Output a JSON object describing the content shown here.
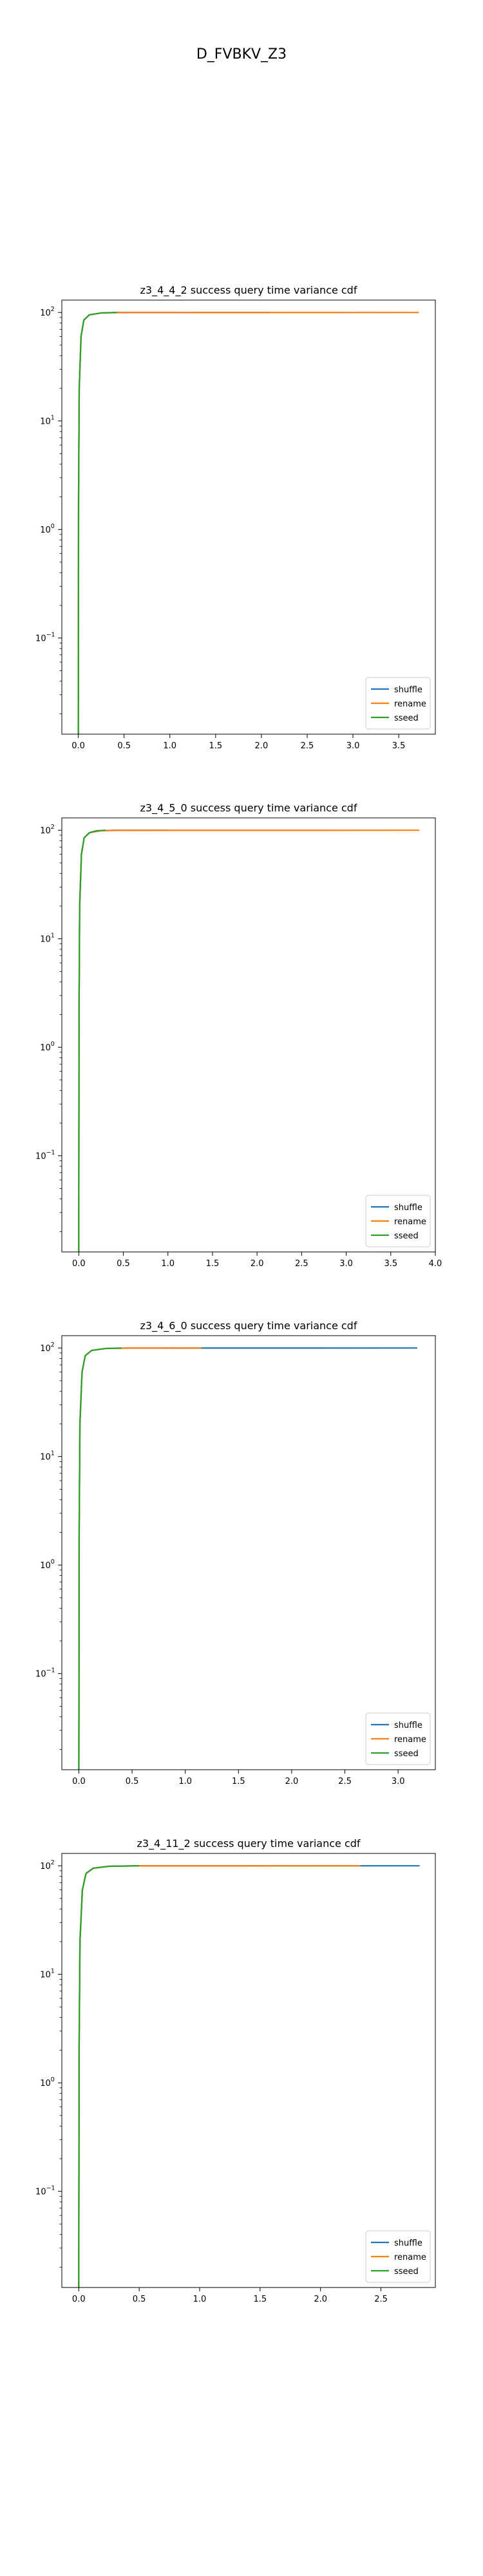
{
  "figure": {
    "suptitle": "D_FVBKV_Z3"
  },
  "colors": {
    "shuffle": "#1f77b4",
    "rename": "#ff7f0e",
    "sseed": "#2ca02c"
  },
  "chart_data": [
    {
      "type": "line",
      "title": "z3_4_4_2 success query time variance cdf",
      "xlabel": "",
      "ylabel": "",
      "yscale": "log",
      "xlim": [
        -0.18,
        3.9
      ],
      "ylim": [
        0.013,
        130
      ],
      "xticks": [
        0.0,
        0.5,
        1.0,
        1.5,
        2.0,
        2.5,
        3.0,
        3.5
      ],
      "xtick_labels": [
        "0.0",
        "0.5",
        "1.0",
        "1.5",
        "2.0",
        "2.5",
        "3.0",
        "3.5"
      ],
      "yticks": [
        0.1,
        1,
        10,
        100
      ],
      "ytick_exponents": [
        "−1",
        "0",
        "1",
        "2"
      ],
      "legend": "lower right",
      "series": [
        {
          "name": "shuffle",
          "x_max": 2.1,
          "points": [
            [
              0,
              0.013
            ],
            [
              0.003,
              2
            ],
            [
              0.01,
              20
            ],
            [
              0.03,
              60
            ],
            [
              0.06,
              85
            ],
            [
              0.12,
              95
            ],
            [
              0.25,
              99
            ],
            [
              0.4,
              99.9
            ],
            [
              2.1,
              100
            ]
          ]
        },
        {
          "name": "rename",
          "x_max": 3.72,
          "points": [
            [
              0,
              0.013
            ],
            [
              0.003,
              2
            ],
            [
              0.01,
              20
            ],
            [
              0.03,
              60
            ],
            [
              0.06,
              85
            ],
            [
              0.12,
              95
            ],
            [
              0.25,
              99
            ],
            [
              0.5,
              99.9
            ],
            [
              3.72,
              100
            ]
          ]
        },
        {
          "name": "sseed",
          "x_max": 0.42,
          "points": [
            [
              0,
              0.013
            ],
            [
              0.003,
              2
            ],
            [
              0.01,
              20
            ],
            [
              0.03,
              60
            ],
            [
              0.06,
              85
            ],
            [
              0.12,
              95
            ],
            [
              0.25,
              99
            ],
            [
              0.42,
              100
            ]
          ]
        }
      ]
    },
    {
      "type": "line",
      "title": "z3_4_5_0 success query time variance cdf",
      "xlabel": "",
      "ylabel": "",
      "yscale": "log",
      "xlim": [
        -0.19,
        4.0
      ],
      "ylim": [
        0.013,
        130
      ],
      "xticks": [
        0.0,
        0.5,
        1.0,
        1.5,
        2.0,
        2.5,
        3.0,
        3.5,
        4.0
      ],
      "xtick_labels": [
        "0.0",
        "0.5",
        "1.0",
        "1.5",
        "2.0",
        "2.5",
        "3.0",
        "3.5",
        "4.0"
      ],
      "yticks": [
        0.1,
        1,
        10,
        100
      ],
      "ytick_exponents": [
        "−1",
        "0",
        "1",
        "2"
      ],
      "legend": "lower right",
      "series": [
        {
          "name": "shuffle",
          "x_max": 1.0,
          "points": [
            [
              0,
              0.013
            ],
            [
              0.003,
              2
            ],
            [
              0.01,
              20
            ],
            [
              0.03,
              60
            ],
            [
              0.06,
              85
            ],
            [
              0.12,
              95
            ],
            [
              0.25,
              99
            ],
            [
              0.4,
              99.9
            ],
            [
              1.0,
              100
            ]
          ]
        },
        {
          "name": "rename",
          "x_max": 3.82,
          "points": [
            [
              0,
              0.013
            ],
            [
              0.003,
              2
            ],
            [
              0.01,
              20
            ],
            [
              0.03,
              60
            ],
            [
              0.06,
              85
            ],
            [
              0.12,
              95
            ],
            [
              0.25,
              99
            ],
            [
              0.5,
              99.9
            ],
            [
              3.82,
              100
            ]
          ]
        },
        {
          "name": "sseed",
          "x_max": 0.3,
          "points": [
            [
              0,
              0.013
            ],
            [
              0.003,
              2
            ],
            [
              0.01,
              20
            ],
            [
              0.03,
              60
            ],
            [
              0.06,
              85
            ],
            [
              0.12,
              95
            ],
            [
              0.2,
              99
            ],
            [
              0.3,
              100
            ]
          ]
        }
      ]
    },
    {
      "type": "line",
      "title": "z3_4_6_0 success query time variance cdf",
      "xlabel": "",
      "ylabel": "",
      "yscale": "log",
      "xlim": [
        -0.16,
        3.35
      ],
      "ylim": [
        0.013,
        130
      ],
      "xticks": [
        0.0,
        0.5,
        1.0,
        1.5,
        2.0,
        2.5,
        3.0
      ],
      "xtick_labels": [
        "0.0",
        "0.5",
        "1.0",
        "1.5",
        "2.0",
        "2.5",
        "3.0"
      ],
      "yticks": [
        0.1,
        1,
        10,
        100
      ],
      "ytick_exponents": [
        "−1",
        "0",
        "1",
        "2"
      ],
      "legend": "lower right",
      "series": [
        {
          "name": "shuffle",
          "x_max": 3.18,
          "points": [
            [
              0,
              0.013
            ],
            [
              0.003,
              2
            ],
            [
              0.01,
              20
            ],
            [
              0.03,
              60
            ],
            [
              0.06,
              85
            ],
            [
              0.12,
              95
            ],
            [
              0.25,
              99
            ],
            [
              0.5,
              99.9
            ],
            [
              3.18,
              100
            ]
          ]
        },
        {
          "name": "rename",
          "x_max": 1.15,
          "points": [
            [
              0,
              0.013
            ],
            [
              0.003,
              2
            ],
            [
              0.01,
              20
            ],
            [
              0.03,
              60
            ],
            [
              0.06,
              85
            ],
            [
              0.12,
              95
            ],
            [
              0.25,
              99
            ],
            [
              0.5,
              99.9
            ],
            [
              1.15,
              100
            ]
          ]
        },
        {
          "name": "sseed",
          "x_max": 0.4,
          "points": [
            [
              0,
              0.013
            ],
            [
              0.003,
              2
            ],
            [
              0.01,
              20
            ],
            [
              0.03,
              60
            ],
            [
              0.06,
              85
            ],
            [
              0.12,
              95
            ],
            [
              0.25,
              99
            ],
            [
              0.4,
              100
            ]
          ]
        }
      ]
    },
    {
      "type": "line",
      "title": "z3_4_11_2 success query time variance cdf",
      "xlabel": "",
      "ylabel": "",
      "yscale": "log",
      "xlim": [
        -0.14,
        2.95
      ],
      "ylim": [
        0.013,
        130
      ],
      "xticks": [
        0.0,
        0.5,
        1.0,
        1.5,
        2.0,
        2.5
      ],
      "xtick_labels": [
        "0.0",
        "0.5",
        "1.0",
        "1.5",
        "2.0",
        "2.5"
      ],
      "yticks": [
        0.1,
        1,
        10,
        100
      ],
      "ytick_exponents": [
        "−1",
        "0",
        "1",
        "2"
      ],
      "legend": "lower right",
      "series": [
        {
          "name": "shuffle",
          "x_max": 2.82,
          "points": [
            [
              0,
              0.013
            ],
            [
              0.003,
              2
            ],
            [
              0.01,
              20
            ],
            [
              0.03,
              60
            ],
            [
              0.06,
              85
            ],
            [
              0.12,
              95
            ],
            [
              0.25,
              99
            ],
            [
              0.5,
              99.9
            ],
            [
              2.82,
              100
            ]
          ]
        },
        {
          "name": "rename",
          "x_max": 2.33,
          "points": [
            [
              0,
              0.013
            ],
            [
              0.003,
              2
            ],
            [
              0.01,
              20
            ],
            [
              0.03,
              60
            ],
            [
              0.06,
              85
            ],
            [
              0.12,
              95
            ],
            [
              0.25,
              99
            ],
            [
              0.5,
              99.9
            ],
            [
              2.33,
              100
            ]
          ]
        },
        {
          "name": "sseed",
          "x_max": 0.5,
          "points": [
            [
              0,
              0.013
            ],
            [
              0.003,
              2
            ],
            [
              0.01,
              20
            ],
            [
              0.03,
              60
            ],
            [
              0.06,
              85
            ],
            [
              0.12,
              95
            ],
            [
              0.25,
              99
            ],
            [
              0.5,
              100
            ]
          ]
        }
      ]
    }
  ]
}
